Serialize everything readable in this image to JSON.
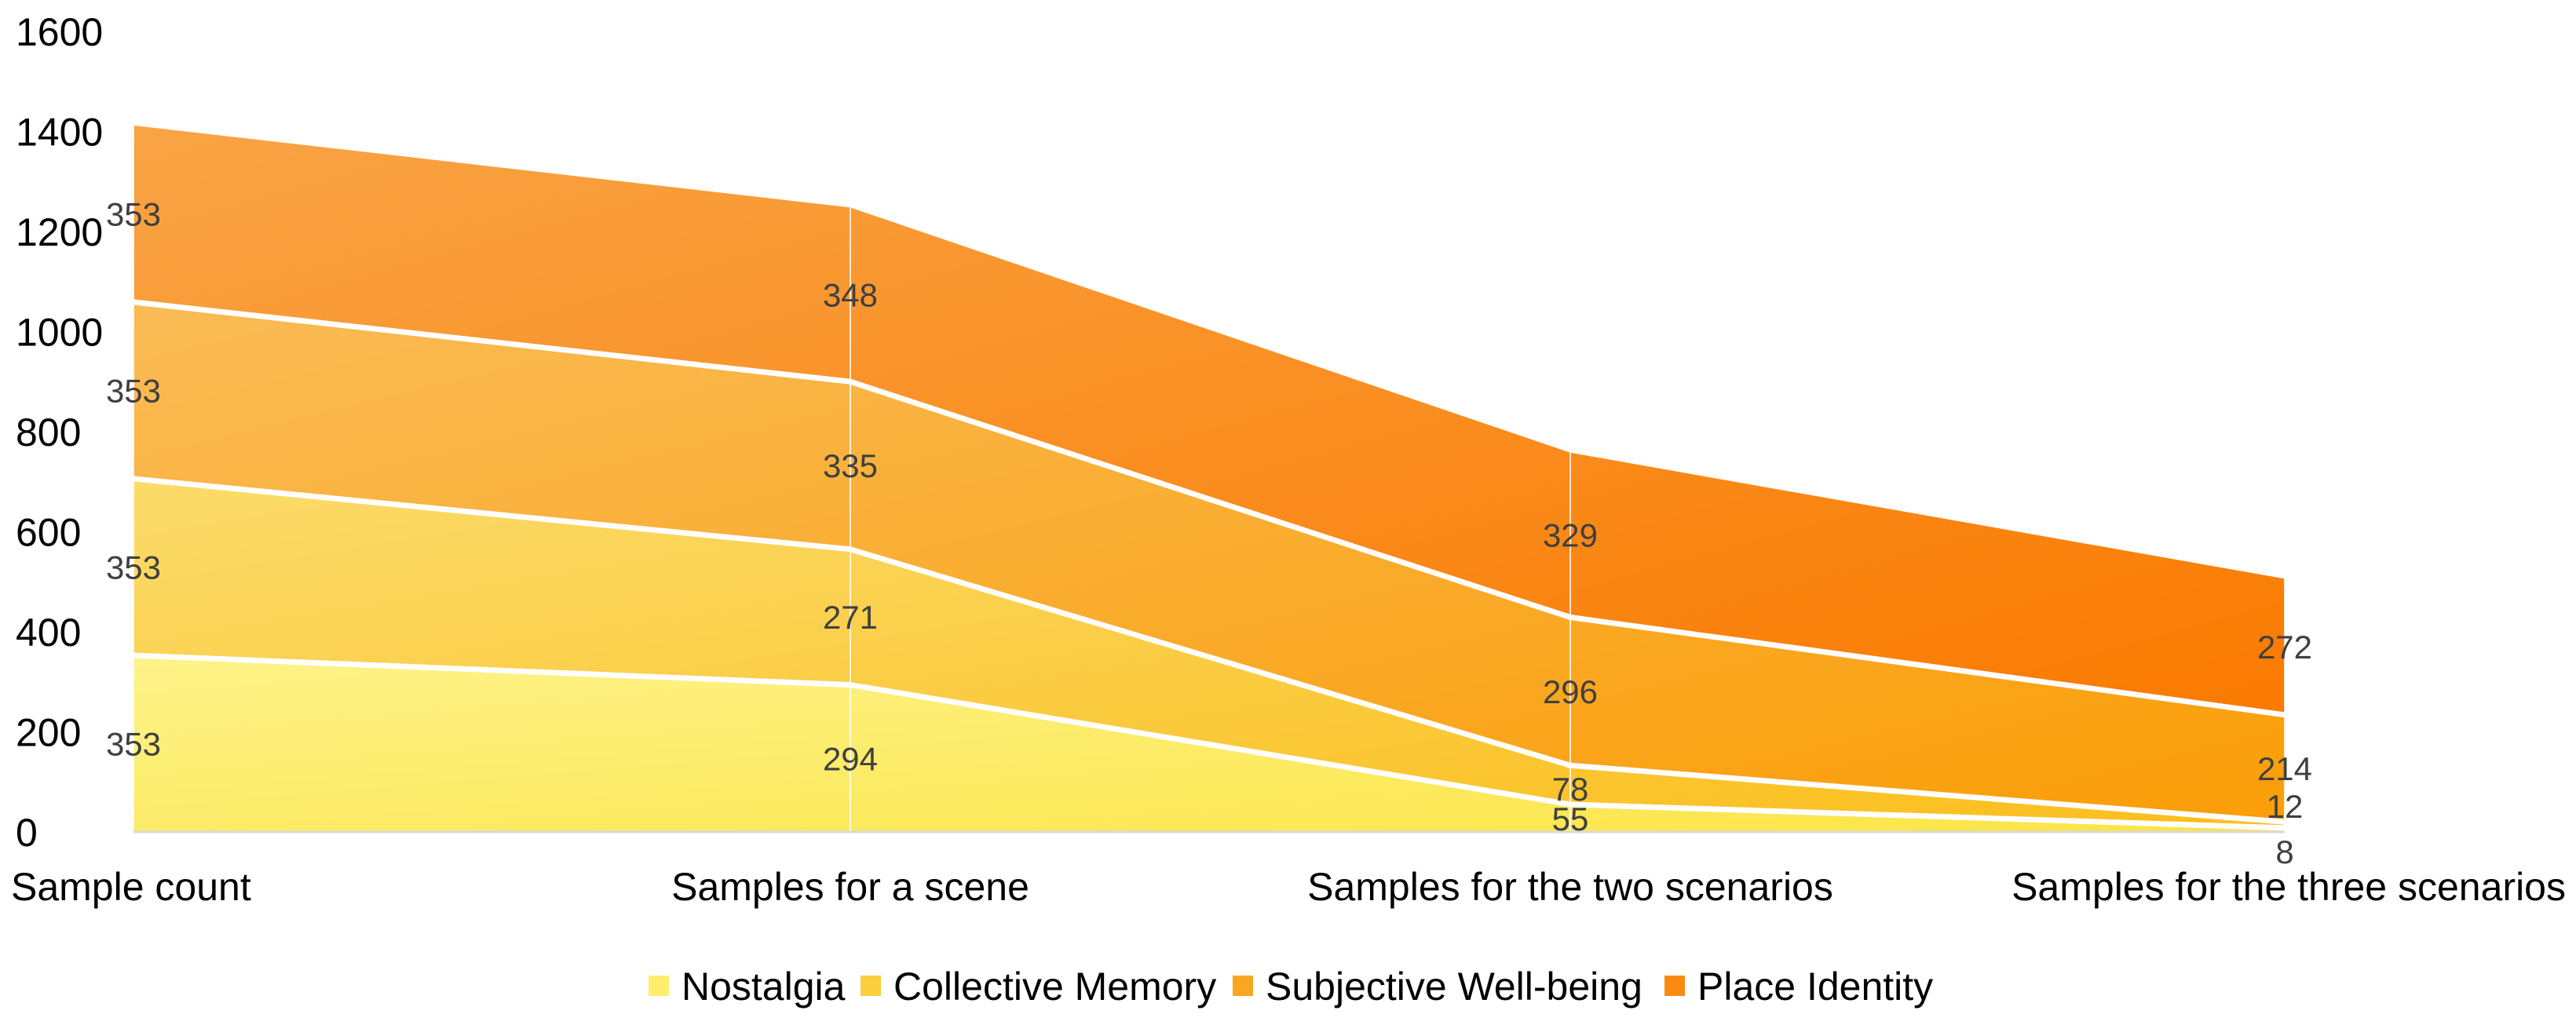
{
  "chart_data": {
    "type": "area",
    "stacked": true,
    "categories": [
      "Sample count",
      "Samples for a scene",
      "Samples for the two scenarios",
      "Samples for the three scenarios"
    ],
    "series": [
      {
        "name": "Nostalgia",
        "values": [
          353,
          294,
          55,
          8
        ],
        "color": "#FDEE6E"
      },
      {
        "name": "Collective Memory",
        "values": [
          353,
          271,
          78,
          12
        ],
        "color": "#FACE3E"
      },
      {
        "name": "Subjective Well-being",
        "values": [
          353,
          335,
          296,
          214
        ],
        "color": "#F9A622"
      },
      {
        "name": "Place Identity",
        "values": [
          353,
          348,
          329,
          272
        ],
        "color": "#F98A12"
      }
    ],
    "ylim": [
      0,
      1600
    ],
    "yticks": [
      0,
      200,
      400,
      600,
      800,
      1000,
      1200,
      1400,
      1600
    ],
    "grid": false,
    "legend_position": "bottom"
  }
}
